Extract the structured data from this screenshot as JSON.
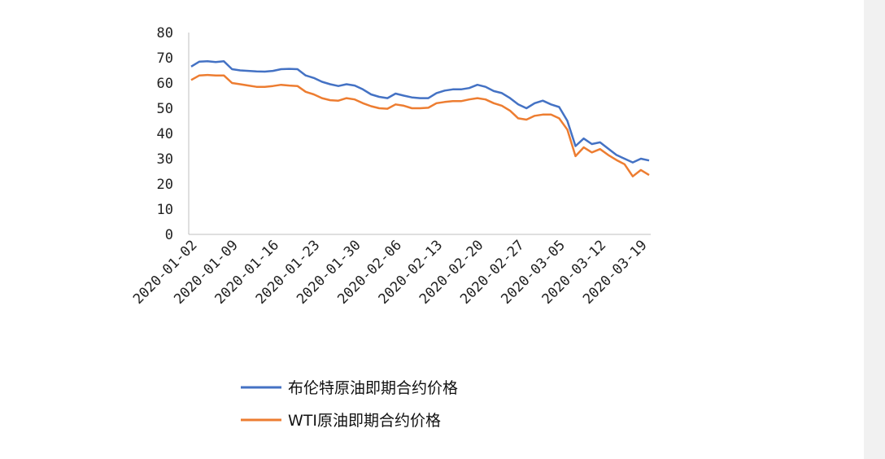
{
  "chart_data": {
    "type": "line",
    "title": "",
    "xlabel": "",
    "ylabel": "",
    "ylim": [
      0,
      80
    ],
    "yticks": [
      0,
      10,
      20,
      30,
      40,
      50,
      60,
      70,
      80
    ],
    "grid": false,
    "legend_position": "bottom",
    "x_tick_labels": [
      "2020-01-02",
      "2020-01-09",
      "2020-01-16",
      "2020-01-23",
      "2020-01-30",
      "2020-02-06",
      "2020-02-13",
      "2020-02-20",
      "2020-02-27",
      "2020-03-05",
      "2020-03-12",
      "2020-03-19"
    ],
    "x": [
      "2020-01-02",
      "2020-01-03",
      "2020-01-06",
      "2020-01-07",
      "2020-01-08",
      "2020-01-09",
      "2020-01-10",
      "2020-01-13",
      "2020-01-14",
      "2020-01-15",
      "2020-01-16",
      "2020-01-17",
      "2020-01-20",
      "2020-01-21",
      "2020-01-22",
      "2020-01-23",
      "2020-01-24",
      "2020-01-27",
      "2020-01-28",
      "2020-01-29",
      "2020-01-30",
      "2020-01-31",
      "2020-02-03",
      "2020-02-04",
      "2020-02-05",
      "2020-02-06",
      "2020-02-07",
      "2020-02-10",
      "2020-02-11",
      "2020-02-12",
      "2020-02-13",
      "2020-02-14",
      "2020-02-17",
      "2020-02-18",
      "2020-02-19",
      "2020-02-20",
      "2020-02-21",
      "2020-02-24",
      "2020-02-25",
      "2020-02-26",
      "2020-02-27",
      "2020-02-28",
      "2020-03-02",
      "2020-03-03",
      "2020-03-04",
      "2020-03-05",
      "2020-03-06",
      "2020-03-09",
      "2020-03-10",
      "2020-03-11",
      "2020-03-12",
      "2020-03-13",
      "2020-03-16",
      "2020-03-17",
      "2020-03-18",
      "2020-03-19",
      "2020-03-20"
    ],
    "series": [
      {
        "name": "布伦特原油即期合约价格",
        "color": "#4472C4",
        "values": [
          66.5,
          68.5,
          68.6,
          68.3,
          68.6,
          65.5,
          65.0,
          64.8,
          64.6,
          64.5,
          64.8,
          65.5,
          65.6,
          65.5,
          63.0,
          62.0,
          60.5,
          59.5,
          58.8,
          59.5,
          59.0,
          57.5,
          55.5,
          54.5,
          54.0,
          55.8,
          55.0,
          54.3,
          54.0,
          54.0,
          56.0,
          57.0,
          57.5,
          57.5,
          58.0,
          59.3,
          58.5,
          56.8,
          56.0,
          54.0,
          51.5,
          50.0,
          52.0,
          53.0,
          51.5,
          50.5,
          45.0,
          35.0,
          38.0,
          35.8,
          36.5,
          34.0,
          31.5,
          30.0,
          28.5,
          30.0,
          29.3
        ]
      },
      {
        "name": "WTI原油即期合约价格",
        "color": "#ED7D31",
        "values": [
          61.2,
          63.0,
          63.2,
          63.0,
          63.0,
          60.0,
          59.5,
          59.0,
          58.5,
          58.5,
          58.8,
          59.3,
          59.0,
          58.8,
          56.5,
          55.5,
          54.0,
          53.2,
          53.0,
          54.0,
          53.5,
          52.0,
          50.8,
          50.0,
          49.8,
          51.5,
          51.0,
          50.0,
          50.0,
          50.2,
          52.0,
          52.5,
          52.8,
          52.8,
          53.5,
          54.0,
          53.5,
          52.0,
          51.0,
          49.0,
          46.0,
          45.5,
          47.0,
          47.5,
          47.5,
          46.0,
          41.5,
          31.0,
          34.5,
          32.5,
          33.8,
          31.5,
          29.5,
          27.8,
          23.0,
          25.5,
          23.5
        ]
      }
    ]
  }
}
